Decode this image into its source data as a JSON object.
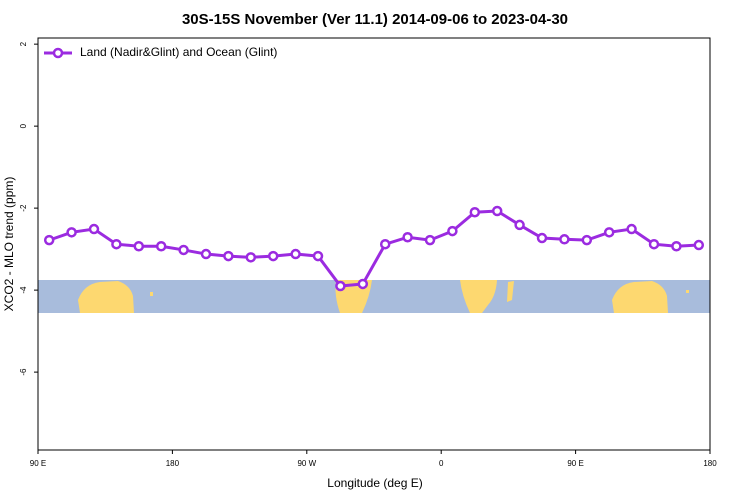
{
  "chart_data": {
    "type": "line",
    "title": "30S-15S November (Ver 11.1)   2014-09-06 to 2023-04-30",
    "xlabel": "Longitude (deg E)",
    "ylabel": "XCO2 - MLO trend (ppm)",
    "x": [
      97.5,
      112.5,
      127.5,
      142.5,
      157.5,
      172.5,
      187.5,
      202.5,
      217.5,
      232.5,
      247.5,
      262.5,
      277.5,
      292.5,
      307.5,
      322.5,
      337.5,
      352.5,
      367.5,
      382.5,
      397.5,
      412.5,
      427.5,
      442.5,
      457.5,
      472.5,
      487.5,
      502.5,
      517.5,
      532.5
    ],
    "series": [
      {
        "name": "Land (Nadir&Glint) and Ocean (Glint)",
        "color": "#9b2be0",
        "values": [
          -2.78,
          -2.59,
          -2.51,
          -2.88,
          -2.93,
          -2.93,
          -3.02,
          -3.12,
          -3.17,
          -3.2,
          -3.17,
          -3.12,
          -3.17,
          -3.9,
          -3.85,
          -2.88,
          -2.71,
          -2.78,
          -2.56,
          -2.1,
          -2.07,
          -2.41,
          -2.73,
          -2.76,
          -2.78,
          -2.59,
          -2.51,
          -2.88,
          -2.93,
          -2.9
        ]
      }
    ],
    "xlim": [
      90,
      540
    ],
    "xticks": [
      {
        "value": 90,
        "label": "90 E"
      },
      180,
      {
        "value": 270,
        "label": "90 W"
      },
      {
        "value": 360,
        "label": "0"
      },
      {
        "value": 450,
        "label": "90 E"
      },
      {
        "value": 540,
        "label": "180"
      }
    ],
    "ylim": [
      -7.9,
      2.15
    ],
    "yticks": [
      2,
      0,
      -2,
      -4,
      -6
    ],
    "legend": "top-left"
  }
}
